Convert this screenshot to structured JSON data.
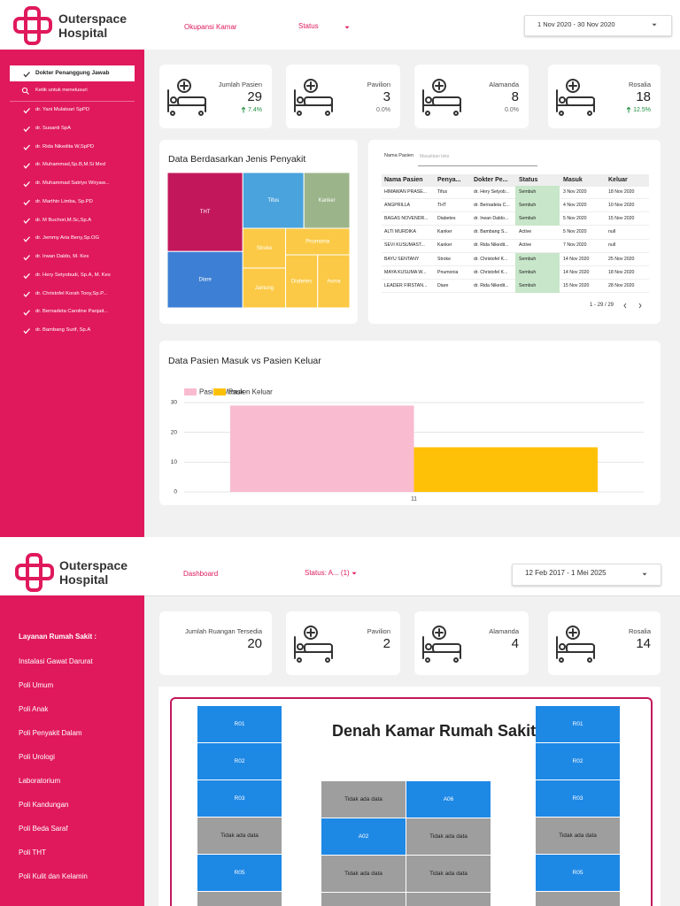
{
  "dashboard_top": {
    "brand": [
      "Outerspace",
      "Hospital"
    ],
    "nav": [
      "Okupansi Kamar",
      "Status"
    ],
    "date_range": "1 Nov 2020 - 30 Nov 2020",
    "filter": {
      "title": "Dokter Penanggung Jawab",
      "search": "Ketik untuk menelusuri",
      "items": [
        "dr. Yani Mulatsari SpPD",
        "dr. Susanti SpA",
        "dr. Rida Nikedita W,SpPD",
        "dr. Muhammad,Sp.B,M.Si Med",
        "dr. Muhammad Satriyo Wiryaw...",
        "dr. Marthin Limba, Sp.PD",
        "dr. M Buchori,M.Sc,Sp.A",
        "dr. Jemmy Aria Beny,Sp.OG",
        "dr. Irwan Daldo, M. Kes",
        "dr. Hery Setyobudi, Sp.A, M. Kes",
        "dr. Christofel Korah Tooy,Sp.P...",
        "dr. Bernadeta Caroline Panjait...",
        "dr. Bambang Surif, Sp.A"
      ]
    },
    "kpis": [
      {
        "label": "Jumlah Pasien",
        "value": 29,
        "delta": "7.4%",
        "delta_color": "#1e8e3e",
        "icon": true
      },
      {
        "label": "Pavilion",
        "value": 3,
        "delta": "0.0%",
        "delta_color": "#666666",
        "icon": true
      },
      {
        "label": "Alamanda",
        "value": 8,
        "delta": "0.0%",
        "delta_color": "#666666",
        "icon": true
      },
      {
        "label": "Rosalia",
        "value": 18,
        "delta": "12.5%",
        "delta_color": "#1e8e3e",
        "icon": true
      }
    ],
    "table": {
      "search_label": "Nama Pasien",
      "search_placeholder": "Masukkan teks",
      "columns": [
        "Nama Pasien",
        "Penya...",
        "Dokter Pe...",
        "Status",
        "Masuk",
        "Keluar"
      ],
      "rows": [
        [
          "HIMAWAN PRASE...",
          "Tifus",
          "dr. Hery Setyob...",
          "Sembuh",
          "3 Nov 2020",
          "18 Nov 2020"
        ],
        [
          "ANGPRILLA",
          "THT",
          "dr. Bernadeta C...",
          "Sembuh",
          "4 Nov 2020",
          "10 Nov 2020"
        ],
        [
          "BAGAS NOVENDR...",
          "Diabetes",
          "dr. Irwan Daldo...",
          "Sembuh",
          "5 Nov 2020",
          "15 Nov 2020"
        ],
        [
          "ALTI MURDIKA",
          "Kanker",
          "dr. Bambang S...",
          "Active",
          "5 Nov 2020",
          "null"
        ],
        [
          "SEVI KUSUMAST...",
          "Kanker",
          "dr. Rida Nikedit...",
          "Active",
          "7 Nov 2020",
          "null"
        ],
        [
          "BAYU SENTANY",
          "Stroke",
          "dr. Christofel K...",
          "Sembuh",
          "14 Nov 2020",
          "25 Nov 2020"
        ],
        [
          "MAYA KUSUMA W...",
          "Pnumonia",
          "dr. Christofel K...",
          "Sembuh",
          "14 Nov 2020",
          "18 Nov 2020"
        ],
        [
          "LEADER FIRSTAN...",
          "Diare",
          "dr. Rida Nikedit...",
          "Sembuh",
          "15 Nov 2020",
          "28 Nov 2020"
        ]
      ],
      "highlighted": [
        true,
        true,
        true,
        false,
        false,
        true,
        true,
        true
      ],
      "highlight_color": "#c8e6c9",
      "pagination": "1 - 29 / 29"
    }
  },
  "chart_data": [
    {
      "type": "treemap",
      "title": "Data Berdasarkan Jenis Penyakit",
      "categories": [
        "THT",
        "Diare",
        "Tifus",
        "Kanker",
        "Stroke",
        "Jantung",
        "Pnumonia",
        "Diabetes",
        "Asma"
      ],
      "values": [
        7,
        5,
        4,
        3,
        2,
        2,
        2,
        2,
        2
      ],
      "colors": [
        "#c2185b",
        "#3d7fd4",
        "#4aa3dc",
        "#9cb48a",
        "#fbc945",
        "#fbc945",
        "#fbc945",
        "#fbc945",
        "#fbc945"
      ]
    },
    {
      "type": "bar",
      "title": "Data Pasien Masuk vs Pasien Keluar",
      "categories": [
        "11"
      ],
      "series": [
        {
          "name": "Pasien Masuk",
          "color": "#f8bbd0",
          "values": [
            29
          ]
        },
        {
          "name": "Pasien Keluar",
          "color": "#ffc107",
          "values": [
            15
          ]
        }
      ],
      "ylim": [
        0,
        30
      ],
      "yticks": [
        0,
        10,
        20,
        30
      ],
      "grid": true
    }
  ],
  "dashboard_bottom": {
    "brand": [
      "Outerspace",
      "Hospital"
    ],
    "nav": [
      "Dashboard",
      "Status: A... (1)"
    ],
    "date_range": "12 Feb 2017 - 1 Mei 2025",
    "services": {
      "title": "Layanan Rumah Sakit :",
      "items": [
        "Instalasi Gawat Darurat",
        "Poli Umum",
        "Poli Anak",
        "Poli Penyakit Dalam",
        "Poli Urologi",
        "Laboratorium",
        "Poli Kandungan",
        "Poli Beda Saraf",
        "Poli THT",
        "Poli Kulit dan Kelamin"
      ]
    },
    "kpis": [
      {
        "label": "Jumlah Ruangan Tersedia",
        "value": 20,
        "icon": false
      },
      {
        "label": "Pavilion",
        "value": 2,
        "icon": true
      },
      {
        "label": "Alamanda",
        "value": 4,
        "icon": true
      },
      {
        "label": "Rosalia",
        "value": 14,
        "icon": true
      }
    ],
    "floor_plan": {
      "title": "Denah Kamar Rumah Sakit",
      "left": [
        {
          "label": "R01",
          "color": "#1e88e5"
        },
        {
          "label": "R02",
          "color": "#1e88e5"
        },
        {
          "label": "R03",
          "color": "#1e88e5"
        },
        {
          "label": "Tidak ada data",
          "color": "#9e9e9e"
        },
        {
          "label": "R05",
          "color": "#1e88e5"
        }
      ],
      "middle": [
        [
          {
            "label": "Tidak ada data",
            "color": "#9e9e9e"
          },
          {
            "label": "A06",
            "color": "#1e88e5"
          }
        ],
        [
          {
            "label": "A02",
            "color": "#1e88e5"
          },
          {
            "label": "Tidak ada data",
            "color": "#9e9e9e"
          }
        ],
        [
          {
            "label": "Tidak ada data",
            "color": "#9e9e9e"
          },
          {
            "label": "Tidak ada data",
            "color": "#9e9e9e"
          }
        ]
      ],
      "right": [
        {
          "label": "R01",
          "color": "#1e88e5"
        },
        {
          "label": "R02",
          "color": "#1e88e5"
        },
        {
          "label": "R03",
          "color": "#1e88e5"
        },
        {
          "label": "Tidak ada data",
          "color": "#9e9e9e"
        },
        {
          "label": "R05",
          "color": "#1e88e5"
        }
      ]
    }
  }
}
